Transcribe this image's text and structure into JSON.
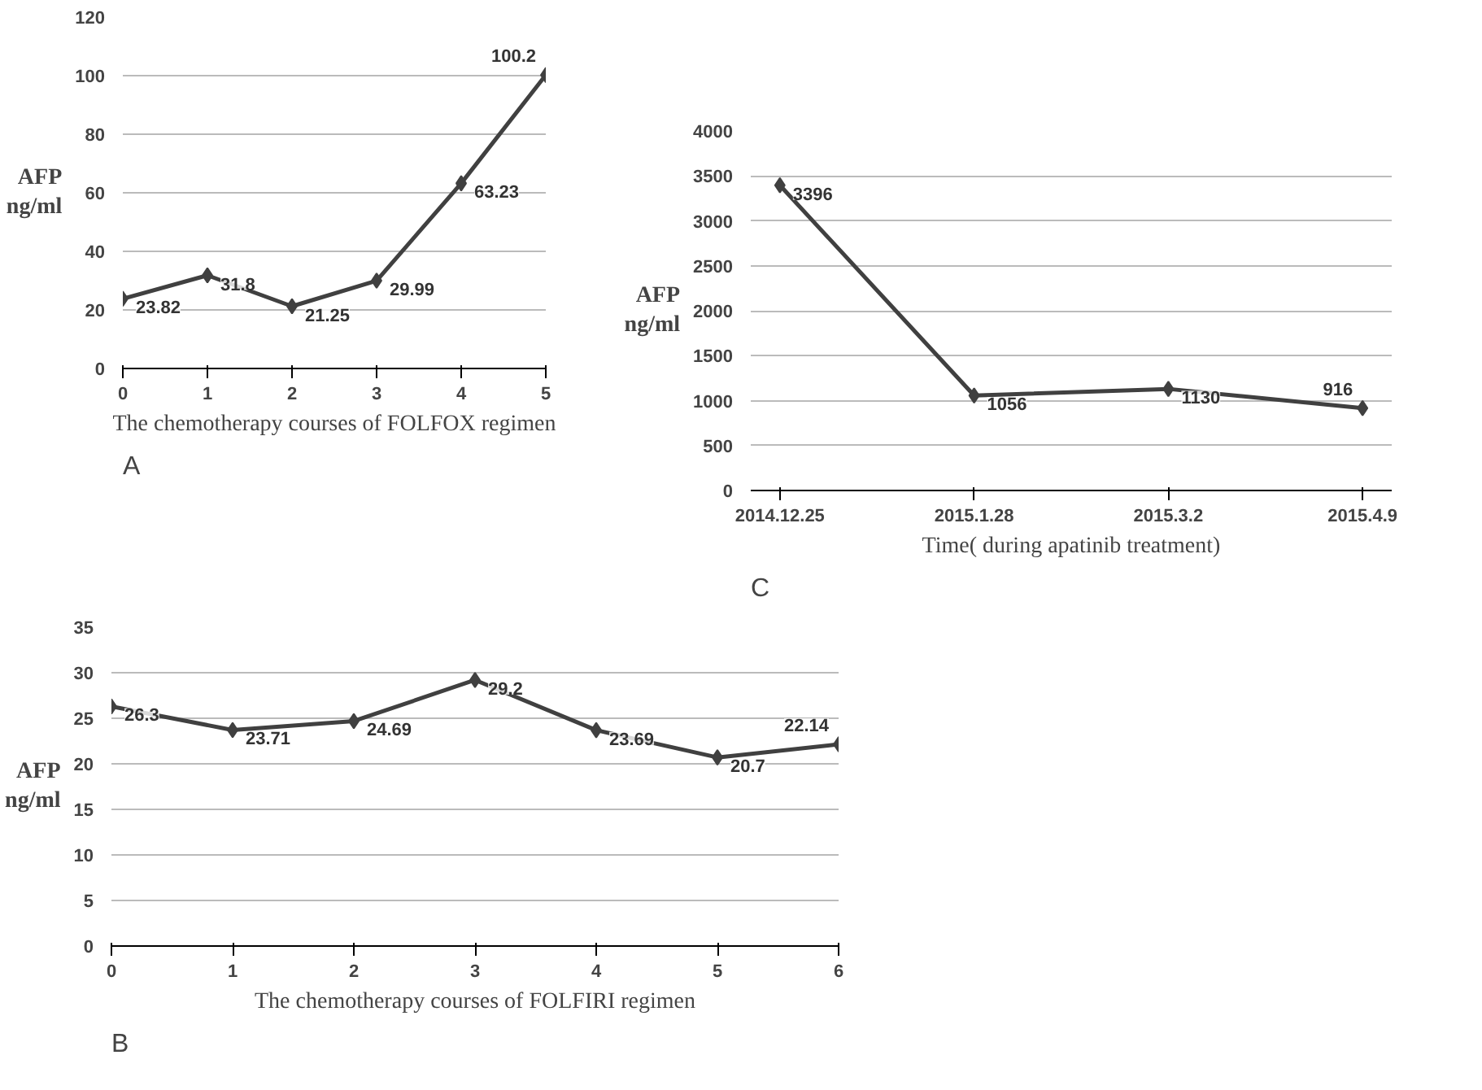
{
  "chart_data": [
    {
      "type": "line",
      "xlabel": "The chemotherapy courses of FOLFOX regimen",
      "ylabel": "AFP\nng/ml",
      "annotations": [
        "A"
      ],
      "x": [
        0,
        1,
        2,
        3,
        4,
        5
      ],
      "values": [
        23.82,
        31.8,
        21.25,
        29.99,
        63.23,
        100.2
      ],
      "color": "#404040",
      "xlim": [
        0,
        5
      ],
      "xticks": [
        0,
        1,
        2,
        3,
        4,
        5
      ],
      "ylim": [
        0,
        120
      ],
      "yticks": [
        0,
        20,
        40,
        60,
        80,
        100,
        120
      ],
      "grid": "y",
      "marker": "diamond",
      "data_labels": true
    },
    {
      "type": "line",
      "xlabel": "Time( during apatinib treatment)",
      "ylabel": "AFP\nng/ml",
      "annotations": [
        "C"
      ],
      "categories": [
        "2014.12.25",
        "2015.1.28",
        "2015.3.2",
        "2015.4.9"
      ],
      "values": [
        3396,
        1056,
        1130,
        916
      ],
      "color": "#404040",
      "ylim": [
        0,
        4000
      ],
      "yticks": [
        0,
        500,
        1000,
        1500,
        2000,
        2500,
        3000,
        3500,
        4000
      ],
      "grid": "y",
      "marker": "diamond",
      "data_labels": true
    },
    {
      "type": "line",
      "xlabel": "The chemotherapy courses of FOLFIRI regimen",
      "ylabel": "AFP\nng/ml",
      "annotations": [
        "B"
      ],
      "x": [
        0,
        1,
        2,
        3,
        4,
        5,
        6
      ],
      "values": [
        26.3,
        23.71,
        24.69,
        29.2,
        23.69,
        20.7,
        22.14
      ],
      "color": "#404040",
      "xlim": [
        0,
        6
      ],
      "xticks": [
        0,
        1,
        2,
        3,
        4,
        5,
        6
      ],
      "ylim": [
        0,
        35
      ],
      "yticks": [
        0,
        5,
        10,
        15,
        20,
        25,
        30,
        35
      ],
      "grid": "y",
      "marker": "diamond",
      "data_labels": true
    }
  ]
}
